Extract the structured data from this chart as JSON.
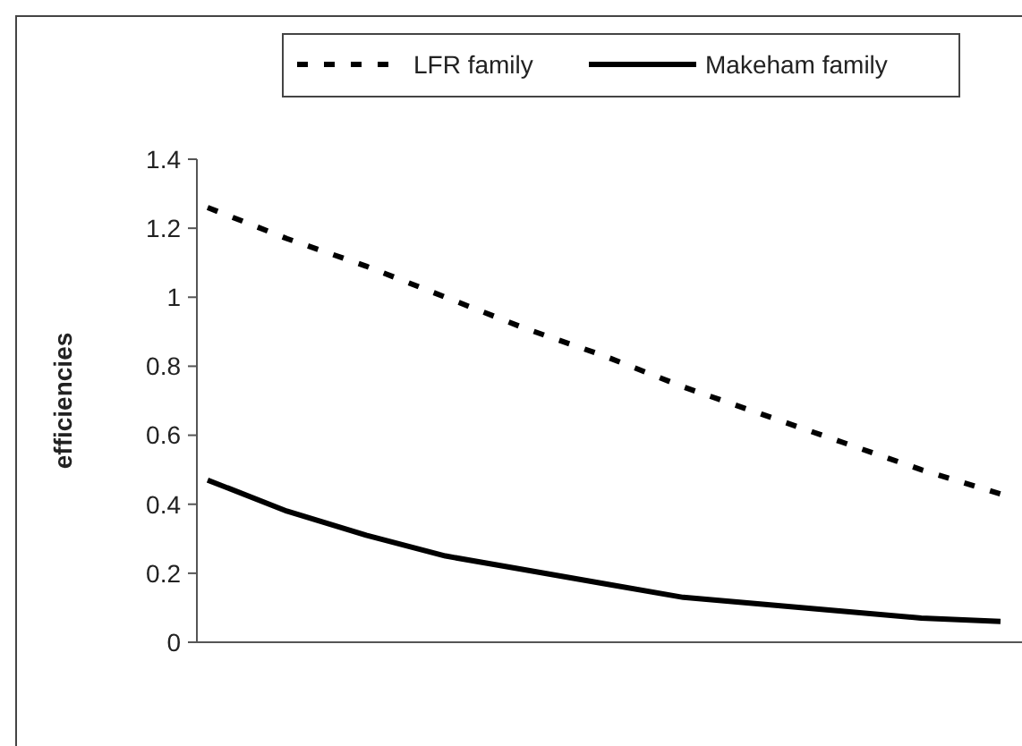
{
  "chart_data": {
    "type": "line",
    "ylabel": "efficiencies",
    "categories": [
      null,
      null,
      null,
      null,
      null,
      null,
      null,
      null,
      null,
      null,
      null
    ],
    "series": [
      {
        "name": "LFR family",
        "color": "#000000",
        "line_style": "dashed",
        "values": [
          1.26,
          1.17,
          1.09,
          1.0,
          0.91,
          0.83,
          0.74,
          0.66,
          0.58,
          0.5,
          0.43
        ]
      },
      {
        "name": "Makeham family",
        "color": "#000000",
        "line_style": "solid",
        "values": [
          0.47,
          0.38,
          0.31,
          0.25,
          0.21,
          0.17,
          0.13,
          0.11,
          0.09,
          0.07,
          0.06
        ]
      }
    ],
    "ylim": [
      0,
      1.4
    ],
    "yticks": [
      0,
      0.2,
      0.4,
      0.6,
      0.8,
      1,
      1.2,
      1.4
    ],
    "tick_labels": "y",
    "grid": false,
    "legend": "top"
  }
}
